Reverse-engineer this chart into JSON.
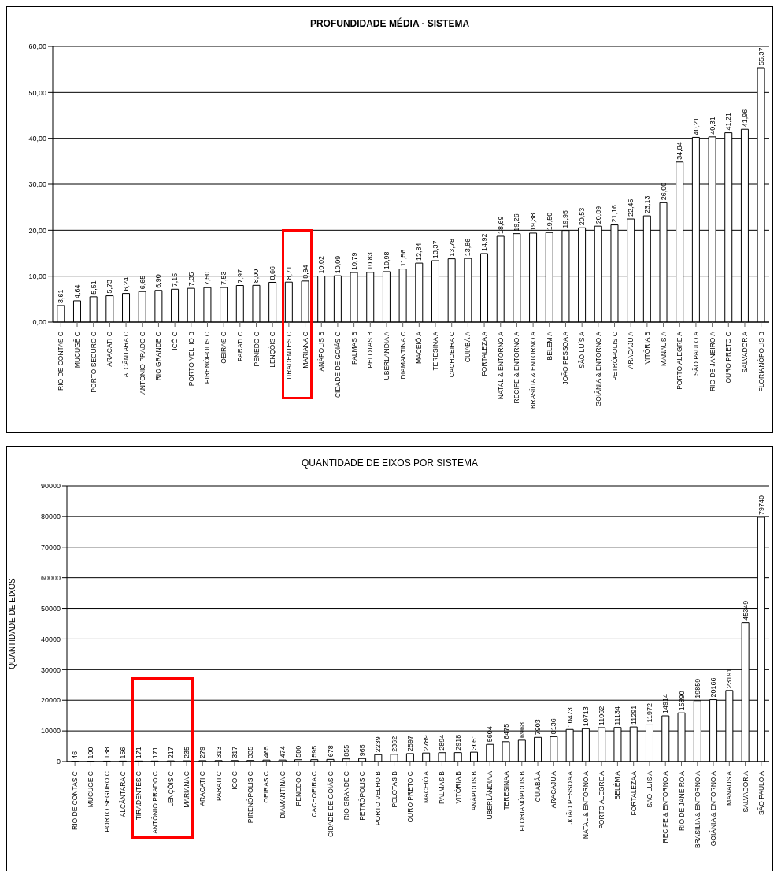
{
  "chart_data": [
    {
      "type": "bar",
      "title": "PROFUNDIDADE MÉDIA - SISTEMA",
      "categories": [
        "RIO DE CONTAS  C",
        "MUCUGÊ  C",
        "PORTO SEGURO  C",
        "ARACATI  C",
        "ALCÂNTARA  C",
        "ANTÔNIO PRADO  C",
        "RIO GRANDE  C",
        "ICÓ  C",
        "PORTO VELHO  B",
        "PIRENÓPOLIS  C",
        "OEIRAS  C",
        "PARATI  C",
        "PENEDO  C",
        "LENÇÓIS  C",
        "TIRADENTES  C",
        "MARIANA  C",
        "ANÁPOLIS  B",
        "CIDADE DE GOIÁS  C",
        "PALMAS  B",
        "PELOTAS  B",
        "UBERLÂNDIA  A",
        "DIAMANTINA  C",
        "MACEIÓ  A",
        "TERESINA  A",
        "CACHOEIRA  C",
        "CUIABÁ  A",
        "FORTALEZA  A",
        "NATAL & ENTORNO  A",
        "RECIFE & ENTORNO  A",
        "BRASÍLIA & ENTORNO  A",
        "BELÉM  A",
        "JOÃO PESSOA  A",
        "SÃO LUÍS  A",
        "GOIÂNIA & ENTORNO  A",
        "PETRÓPOLIS  C",
        "ARACAJU  A",
        "VITÓRIA  B",
        "MANAUS  A",
        "PORTO ALEGRE  A",
        "SÃO PAULO  A",
        "RIO DE JANEIRO  A",
        "OURO PRETO  C",
        "SALVADOR  A",
        "FLORIANÓPOLIS  B"
      ],
      "values": [
        3.61,
        4.64,
        5.51,
        5.73,
        6.24,
        6.65,
        6.9,
        7.15,
        7.35,
        7.5,
        7.53,
        7.97,
        8.0,
        8.66,
        8.71,
        8.94,
        10.02,
        10.09,
        10.79,
        10.83,
        10.98,
        11.56,
        12.84,
        13.37,
        13.78,
        13.86,
        14.92,
        18.69,
        19.26,
        19.38,
        19.5,
        19.95,
        20.53,
        20.89,
        21.16,
        22.45,
        23.13,
        26.0,
        34.84,
        40.21,
        40.31,
        41.21,
        41.96,
        55.37
      ],
      "value_labels": [
        "3,61",
        "4,64",
        "5,51",
        "5,73",
        "6,24",
        "6,65",
        "6,90",
        "7,15",
        "7,35",
        "7,50",
        "7,53",
        "7,97",
        "8,00",
        "8,66",
        "8,71",
        "8,94",
        "10,02",
        "10,09",
        "10,79",
        "10,83",
        "10,98",
        "11,56",
        "12,84",
        "13,37",
        "13,78",
        "13,86",
        "14,92",
        "18,69",
        "19,26",
        "19,38",
        "19,50",
        "19,95",
        "20,53",
        "20,89",
        "21,16",
        "22,45",
        "23,13",
        "26,00",
        "34,84",
        "40,21",
        "40,31",
        "41,21",
        "41,96",
        "55,37"
      ],
      "color": "#ffffff",
      "ylim": [
        0,
        60
      ],
      "yticks": [
        {
          "value": 0,
          "label": "0,00"
        },
        {
          "value": 10,
          "label": "10,00"
        },
        {
          "value": 20,
          "label": "20,00"
        },
        {
          "value": 30,
          "label": "30,00"
        },
        {
          "value": 40,
          "label": "40,00"
        },
        {
          "value": 50,
          "label": "50,00"
        },
        {
          "value": 60,
          "label": "60,00"
        }
      ],
      "grid": "y"
    },
    {
      "type": "bar",
      "title": "QUANTIDADE DE EIXOS POR SISTEMA",
      "ylabel": "QUANTIDADE DE EIXOS",
      "categories": [
        "RIO DE CONTAS  C",
        "MUCUGÊ  C",
        "PORTO SEGURO  C",
        "ALCÂNTARA  C",
        "TIRADENTES  C",
        "ANTÔNIO PRADO  C",
        "LENÇÓIS  C",
        "MARIANA  C",
        "ARACATI  C",
        "PARATI  C",
        "ICÓ  C",
        "PIRENÓPOLIS  C",
        "OEIRAS  C",
        "DIAMANTINA  C",
        "PENEDO  C",
        "CACHOEIRA  C",
        "CIDADE DE GOIÁS  C",
        "RIO GRANDE  C",
        "PETRÓPOLIS  C",
        "PORTO VELHO  B",
        "PELOTAS  B",
        "OURO PRETO  C",
        "MACEIÓ  A",
        "PALMAS  B",
        "VITÓRIA  B",
        "ANÁPOLIS  B",
        "UBERLÂNDIA  A",
        "TERESINA  A",
        "FLORIANÓPOLIS  B",
        "CUIABÁ  A",
        "ARACAJU  A",
        "JOÃO PESSOA  A",
        "NATAL & ENTORNO  A",
        "PORTO ALEGRE  A",
        "BELÉM  A",
        "FORTALEZA  A",
        "SÃO LUÍS  A",
        "RECIFE & ENTORNO  A",
        "RIO DE JANEIRO  A",
        "BRASÍLIA & ENTORNO  A",
        "GOIÂNIA & ENTORNO  A",
        "MANAUS  A",
        "SALVADOR  A",
        "SÃO PAULO  A"
      ],
      "values": [
        46,
        100,
        138,
        156,
        171,
        171,
        217,
        235,
        279,
        313,
        317,
        335,
        465,
        474,
        580,
        595,
        678,
        855,
        965,
        2239,
        2362,
        2597,
        2789,
        2894,
        2918,
        3051,
        5604,
        6475,
        6968,
        7903,
        8136,
        10473,
        10713,
        11062,
        11134,
        11291,
        11972,
        14914,
        15890,
        19859,
        20166,
        23191,
        45349,
        79740
      ],
      "data_labels": true,
      "color": "#ffffff",
      "ylim": [
        0,
        90000
      ],
      "yticks": [
        0,
        10000,
        20000,
        30000,
        40000,
        50000,
        60000,
        70000,
        80000,
        90000
      ],
      "grid": "y"
    }
  ]
}
